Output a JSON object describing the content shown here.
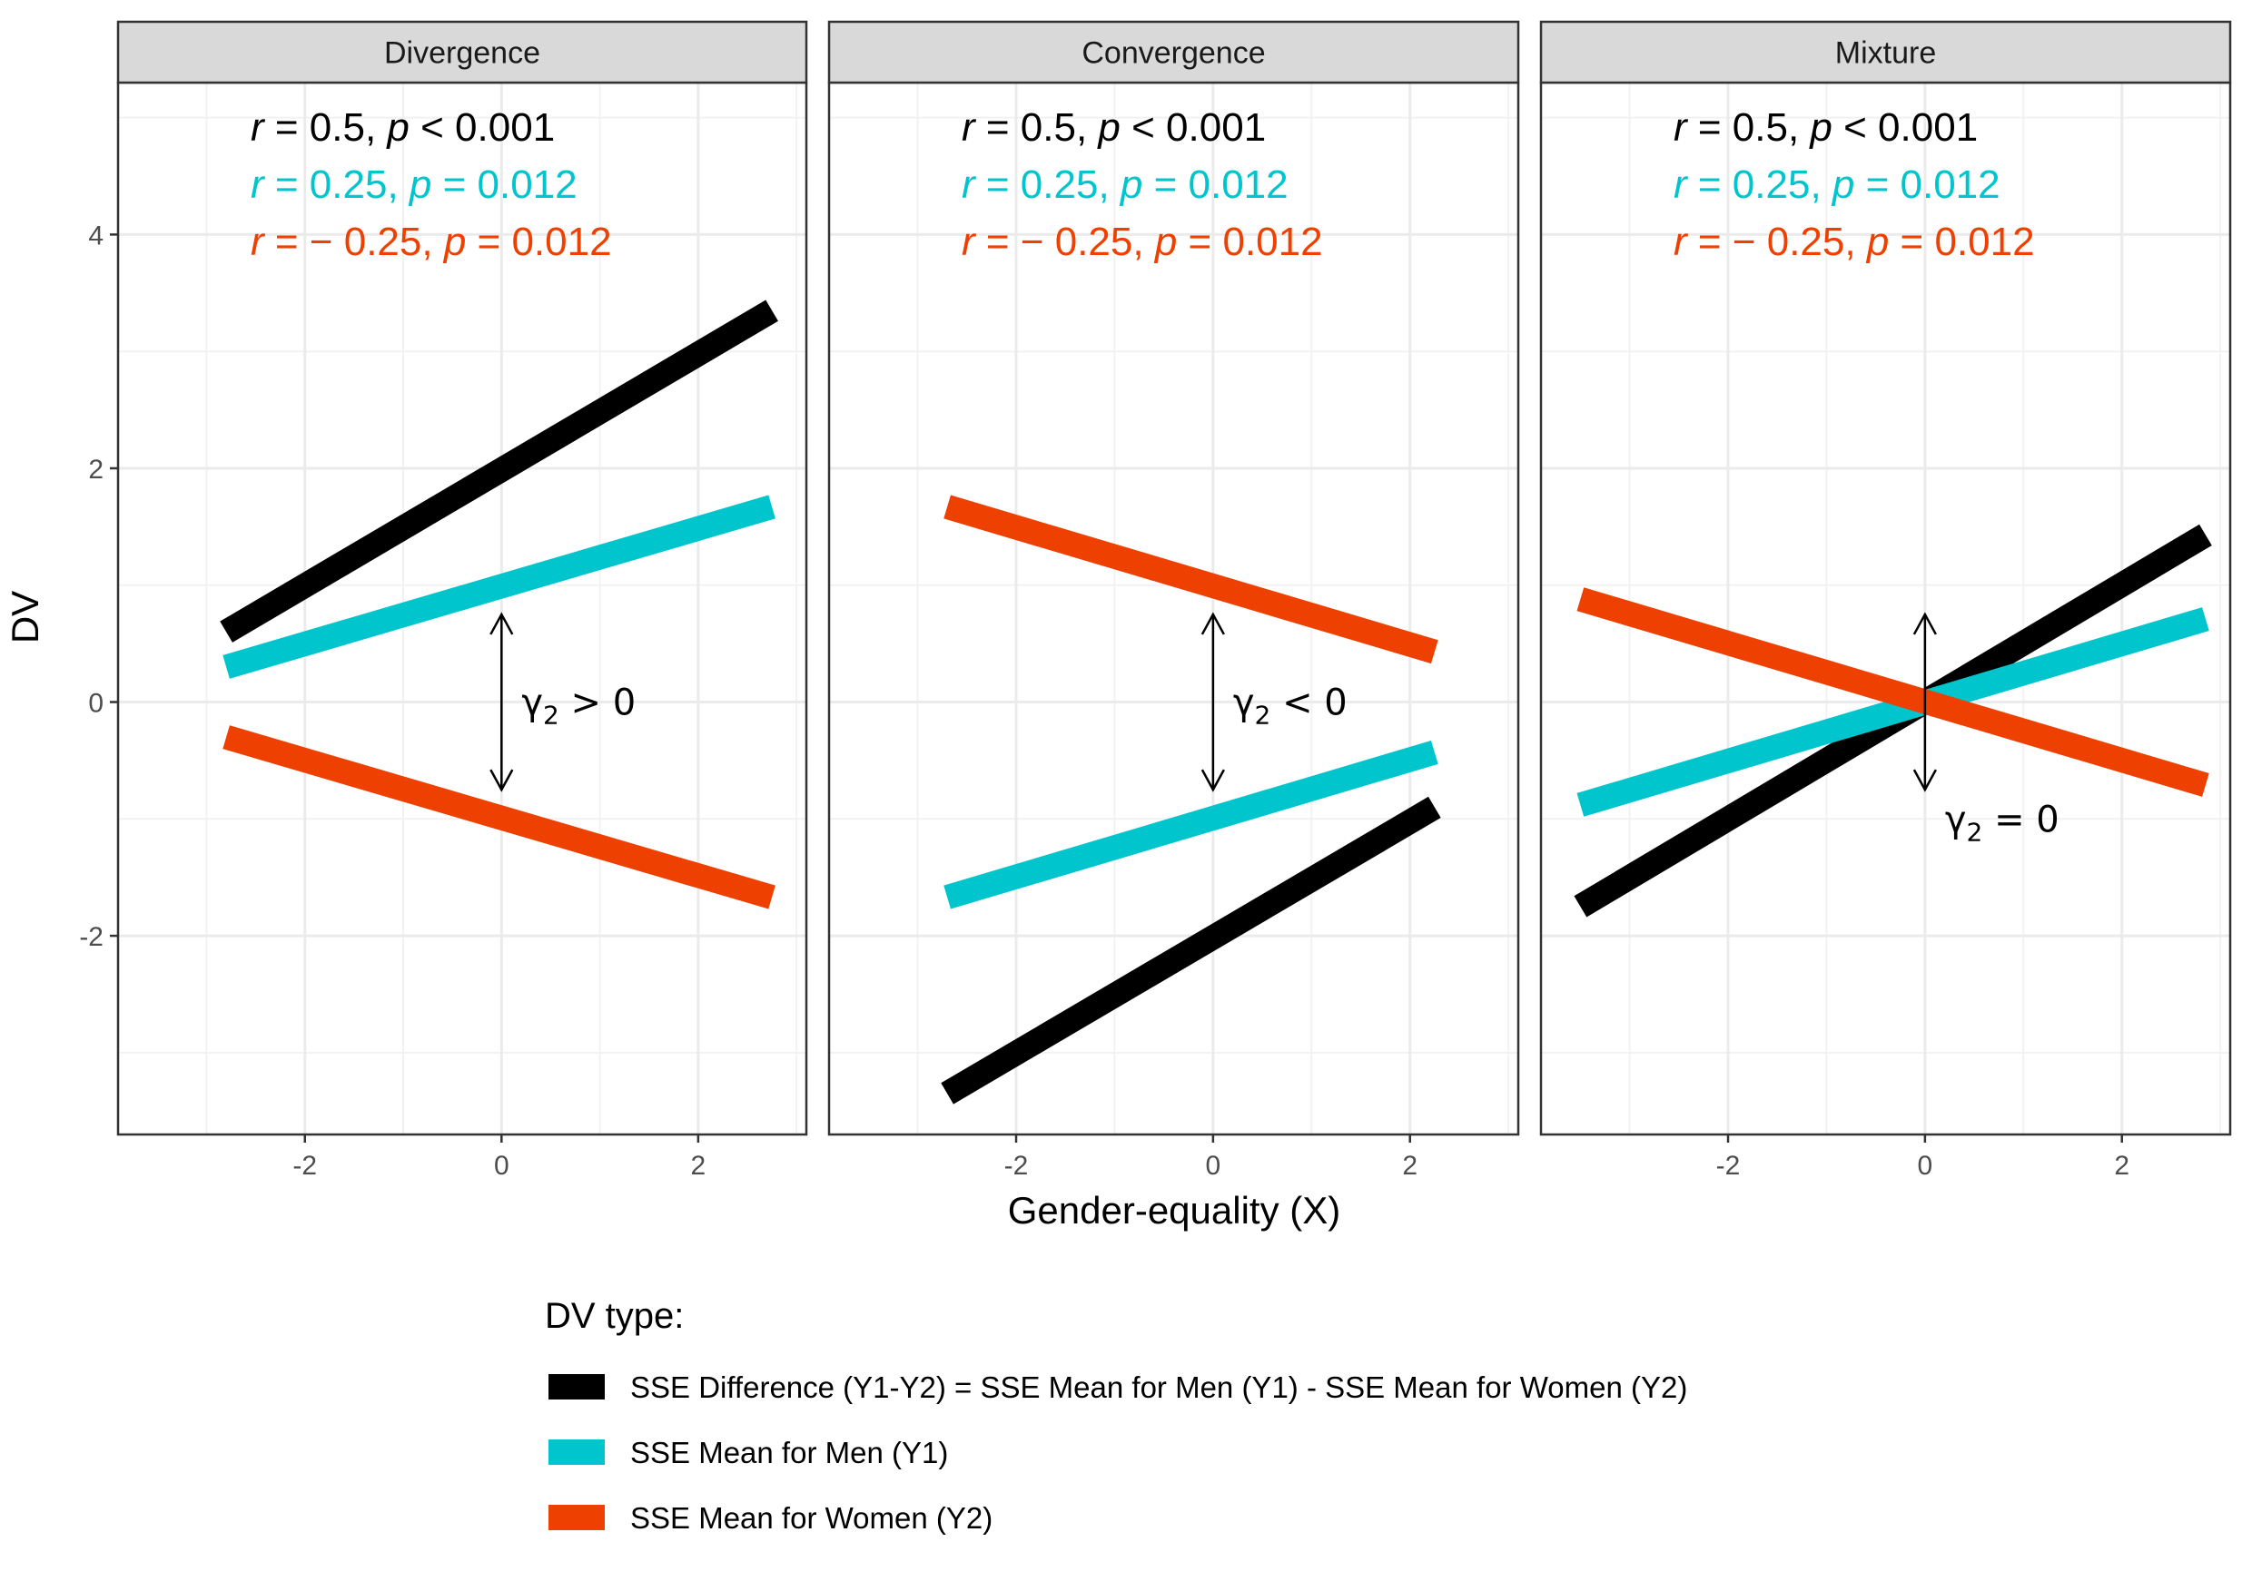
{
  "chart_data": [
    {
      "type": "line",
      "panel": "Divergence",
      "xlim": [
        -3.9,
        3.1
      ],
      "ylim": [
        -3.7,
        5.3
      ],
      "x_ticks": [
        -2,
        0,
        2
      ],
      "y_ticks": [
        -2,
        0,
        2,
        4
      ],
      "series": [
        {
          "name": "SSE Difference (Y1-Y2) = SSE Mean for Men (Y1) - SSE Mean for Women (Y2)",
          "color": "#000000",
          "x": [
            -2.8,
            2.75
          ],
          "y": [
            0.6,
            3.35
          ]
        },
        {
          "name": "SSE Mean for Men (Y1)",
          "color": "#00C5CD",
          "x": [
            -2.8,
            2.75
          ],
          "y": [
            0.3,
            1.67
          ]
        },
        {
          "name": "SSE Mean for Women (Y2)",
          "color": "#EE4000",
          "x": [
            -2.8,
            2.75
          ],
          "y": [
            -0.3,
            -1.67
          ]
        }
      ],
      "annotations": [
        {
          "r": "0.5",
          "p_op": "<",
          "p": "0.001",
          "color": "#000000"
        },
        {
          "r": "0.25",
          "p_op": "=",
          "p": "0.012",
          "color": "#00C5CD"
        },
        {
          "r": "− 0.25",
          "p_op": "=",
          "p": "0.012",
          "color": "#EE4000"
        }
      ],
      "gamma": {
        "symbol": "γ",
        "sub": "2",
        "rel": "> 0",
        "arrow_x": 0,
        "arrow_y": [
          0.75,
          -0.75
        ]
      }
    },
    {
      "type": "line",
      "panel": "Convergence",
      "xlim": [
        -3.9,
        3.1
      ],
      "ylim": [
        -3.7,
        5.3
      ],
      "x_ticks": [
        -2,
        0,
        2
      ],
      "y_ticks": [
        -2,
        0,
        2,
        4
      ],
      "series": [
        {
          "name": "SSE Difference (Y1-Y2) = SSE Mean for Men (Y1) - SSE Mean for Women (Y2)",
          "color": "#000000",
          "x": [
            -2.7,
            2.25
          ],
          "y": [
            -3.35,
            -0.9
          ]
        },
        {
          "name": "SSE Mean for Men (Y1)",
          "color": "#00C5CD",
          "x": [
            -2.7,
            2.25
          ],
          "y": [
            -1.67,
            -0.43
          ]
        },
        {
          "name": "SSE Mean for Women (Y2)",
          "color": "#EE4000",
          "x": [
            -2.7,
            2.25
          ],
          "y": [
            1.67,
            0.43
          ]
        }
      ],
      "annotations": [
        {
          "r": "0.5",
          "p_op": "<",
          "p": "0.001",
          "color": "#000000"
        },
        {
          "r": "0.25",
          "p_op": "=",
          "p": "0.012",
          "color": "#00C5CD"
        },
        {
          "r": "− 0.25",
          "p_op": "=",
          "p": "0.012",
          "color": "#EE4000"
        }
      ],
      "gamma": {
        "symbol": "γ",
        "sub": "2",
        "rel": "< 0",
        "arrow_x": 0,
        "arrow_y": [
          0.75,
          -0.75
        ]
      }
    },
    {
      "type": "line",
      "panel": "Mixture",
      "xlim": [
        -3.9,
        3.1
      ],
      "ylim": [
        -3.7,
        5.3
      ],
      "x_ticks": [
        -2,
        0,
        2
      ],
      "y_ticks": [
        -2,
        0,
        2,
        4
      ],
      "series": [
        {
          "name": "SSE Difference (Y1-Y2) = SSE Mean for Men (Y1) - SSE Mean for Women (Y2)",
          "color": "#000000",
          "x": [
            -3.5,
            2.85
          ],
          "y": [
            -1.75,
            1.43
          ]
        },
        {
          "name": "SSE Mean for Men (Y1)",
          "color": "#00C5CD",
          "x": [
            -3.5,
            2.85
          ],
          "y": [
            -0.88,
            0.71
          ]
        },
        {
          "name": "SSE Mean for Women (Y2)",
          "color": "#EE4000",
          "x": [
            -3.5,
            2.85
          ],
          "y": [
            0.88,
            -0.71
          ]
        }
      ],
      "annotations": [
        {
          "r": "0.5",
          "p_op": "<",
          "p": "0.001",
          "color": "#000000"
        },
        {
          "r": "0.25",
          "p_op": "=",
          "p": "0.012",
          "color": "#00C5CD"
        },
        {
          "r": "− 0.25",
          "p_op": "=",
          "p": "0.012",
          "color": "#EE4000"
        }
      ],
      "gamma": {
        "symbol": "γ",
        "sub": "2",
        "rel": "= 0",
        "arrow_x": 0,
        "arrow_y": [
          0.75,
          -0.75
        ]
      }
    }
  ],
  "xlabel": "Gender-equality (X)",
  "ylabel": "DV",
  "grid": true,
  "legend": {
    "position": "bottom",
    "title": "DV type:",
    "items": [
      {
        "label": "SSE Difference (Y1-Y2) = SSE Mean for Men (Y1) - SSE Mean for Women (Y2)",
        "color": "#000000"
      },
      {
        "label": "SSE Mean for Men (Y1)",
        "color": "#00C5CD"
      },
      {
        "label": "SSE Mean for Women (Y2)",
        "color": "#EE4000"
      }
    ]
  },
  "annotation_labels": {
    "r": "r",
    "p": "p"
  }
}
